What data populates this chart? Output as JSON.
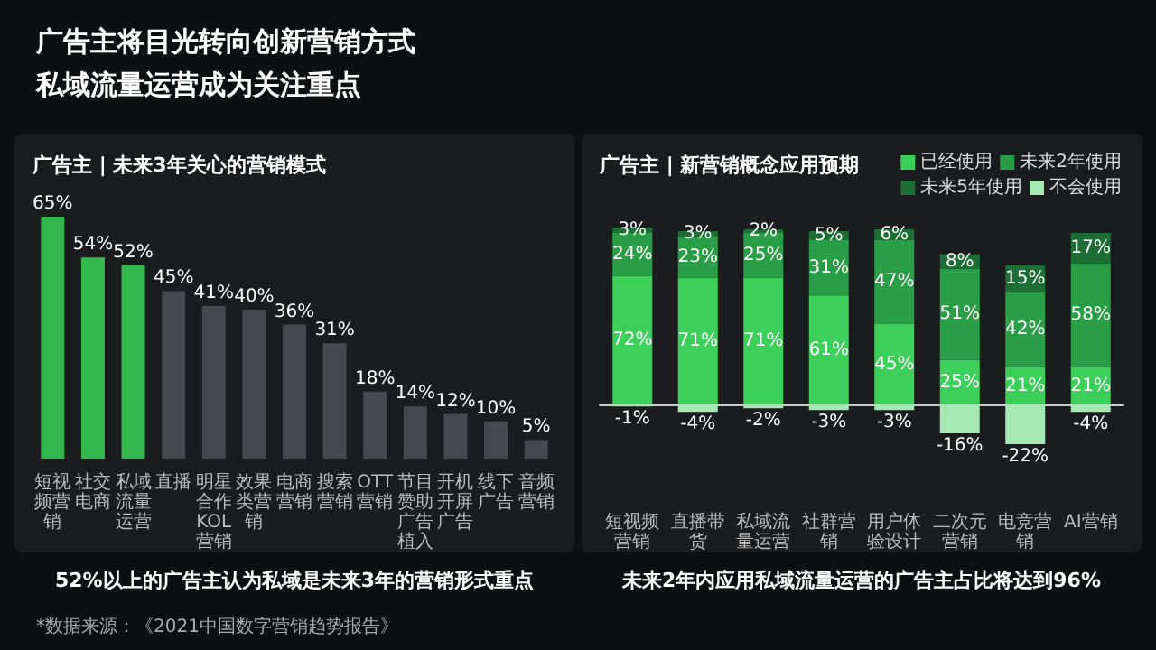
{
  "chart_data": [
    {
      "type": "bar",
      "title": "广告主将目光转向创新营销方式",
      "subtitle": "私域流量运营成为关注重点",
      "annotations": [
        "广告主 | 未来3年关心的营销模式",
        "52%以上的广告主认为私域是未来3年的营销形式重点",
        "*数据来源：《2021中国数字营销趋势报告》"
      ],
      "categories": [
        "短视频营销",
        "社交电商",
        "私域流量运营",
        "直播",
        "明星合作KOL营销",
        "效果类营销",
        "电商营销",
        "搜索营销",
        "OTT营销",
        "节目赞助广告植入",
        "开机开屏广告",
        "线下广告",
        "音频营销"
      ],
      "values": [
        65,
        54,
        52,
        45,
        41,
        40,
        36,
        31,
        18,
        14,
        12,
        10,
        5
      ],
      "value_labels": [
        "65%",
        "54%",
        "52%",
        "45%",
        "41%",
        "40%",
        "36%",
        "31%",
        "18%",
        "14%",
        "12%",
        "10%",
        "5%"
      ],
      "colors": [
        "#33b84e",
        "#33b84e",
        "#33b84e",
        "#45484d",
        "#45484d",
        "#45484d",
        "#45484d",
        "#45484d",
        "#45484d",
        "#45484d",
        "#45484d",
        "#45484d",
        "#45484d"
      ],
      "legend": false
    },
    {
      "type": "bar",
      "title": "广告主 | 新营销概念应用预期",
      "annotations": [
        "未来2年内应用私域流量运营的广告主占比将达到96%"
      ],
      "categories": [
        "短视频营销",
        "直播带货",
        "私域流量运营",
        "社群营销",
        "用户体验设计",
        "二次元营销",
        "电竞营销",
        "AI营销"
      ],
      "stacked": true,
      "legend": "top right",
      "series": [
        {
          "name": "已经使用",
          "color": "#3ccf5a",
          "values": [
            72,
            71,
            71,
            61,
            45,
            25,
            21,
            21
          ],
          "value_labels": [
            "72%",
            "71%",
            "71%",
            "61%",
            "45%",
            "25%",
            "21%",
            "21%"
          ]
        },
        {
          "name": "未来2年使用",
          "color": "#2a9e46",
          "values": [
            24,
            23,
            25,
            31,
            47,
            51,
            42,
            58
          ],
          "value_labels": [
            "24%",
            "23%",
            "25%",
            "31%",
            "47%",
            "51%",
            "42%",
            "58%"
          ]
        },
        {
          "name": "未来5年使用",
          "color": "#1d6e35",
          "values": [
            3,
            3,
            2,
            5,
            6,
            8,
            15,
            17
          ],
          "value_labels": [
            "3%",
            "3%",
            "2%",
            "5%",
            "6%",
            "8%",
            "15%",
            "17%"
          ]
        },
        {
          "name": "不会使用",
          "color": "#a6e8b2",
          "values": [
            -1,
            -4,
            -2,
            -3,
            -3,
            -16,
            -22,
            -4
          ],
          "value_labels": [
            "-1%",
            "-4%",
            "-2%",
            "-3%",
            "-3%",
            "-16%",
            "-22%",
            "-4%"
          ]
        }
      ]
    }
  ]
}
